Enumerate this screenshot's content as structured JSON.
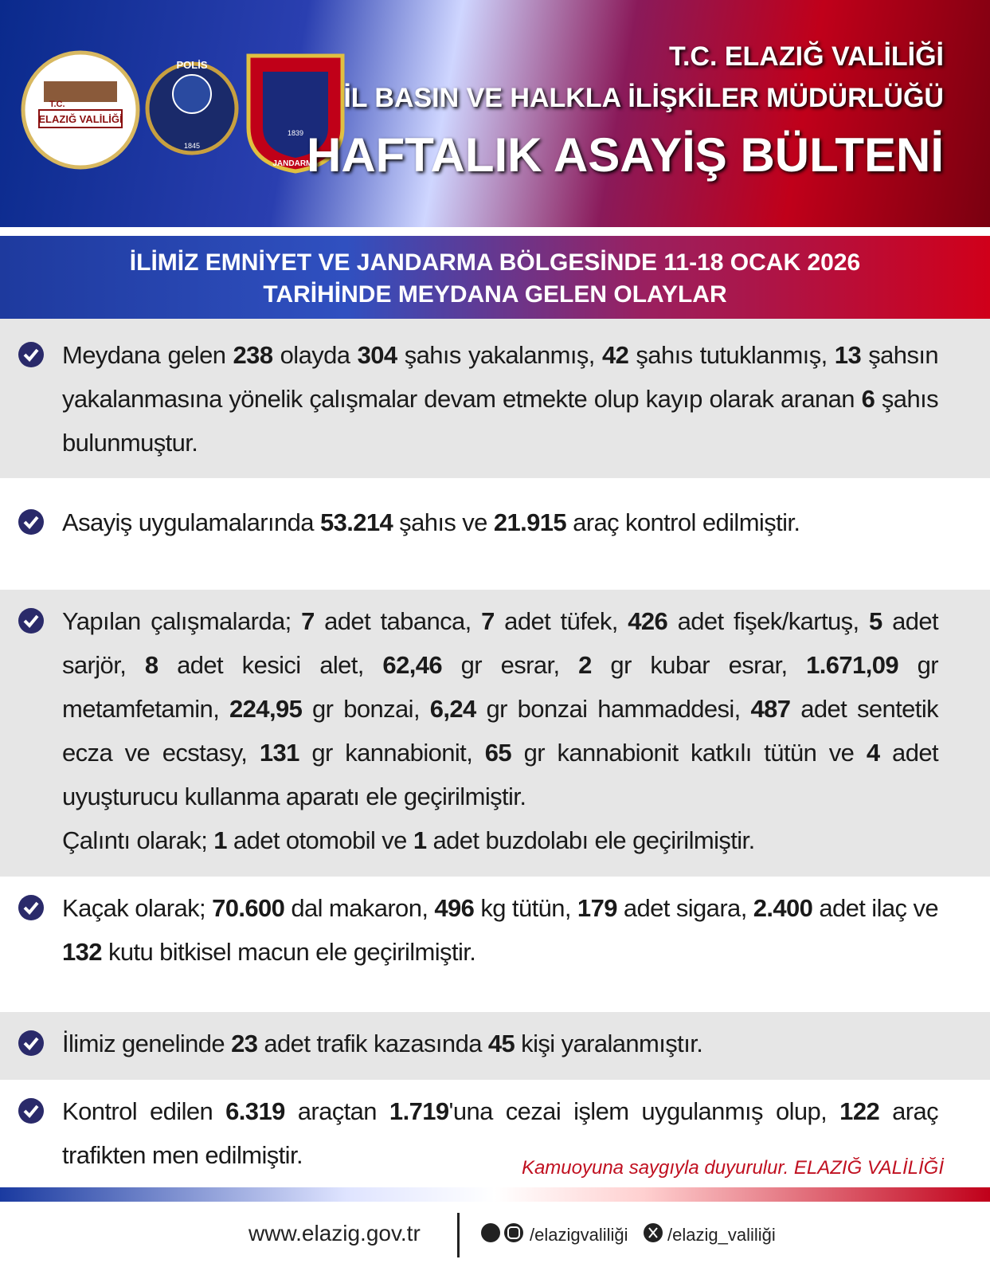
{
  "header": {
    "org_line": "T.C. ELAZIĞ VALİLİĞİ",
    "dept_line": "İL BASIN VE HALKLA İLİŞKİLER MÜDÜRLÜĞÜ",
    "title": "HAFTALIK ASAYİŞ BÜLTENİ",
    "logos": {
      "valilik_top": "T.C.",
      "valilik_name": "ELAZIĞ VALİLİĞİ",
      "polis": "POLİS",
      "polis_year": "1845",
      "jandarma": "JANDARMA",
      "jandarma_year": "1839"
    }
  },
  "subtitle": [
    "İLİMİZ EMNİYET VE JANDARMA BÖLGESİNDE 11-18 OCAK 2026",
    "TARİHİNDE MEYDANA GELEN OLAYLAR"
  ],
  "items": [
    [
      [
        {
          "text": "Meydana gelen "
        },
        {
          "bold": "238"
        },
        {
          "text": " olayda "
        },
        {
          "bold": "304"
        },
        {
          "text": " şahıs yakalanmış, "
        },
        {
          "bold": "42"
        },
        {
          "text": " şahıs tutuklanmış, "
        },
        {
          "bold": "13"
        },
        {
          "text": " şahsın yakalanmasına yönelik çalışmalar devam etmekte olup kayıp olarak aranan "
        },
        {
          "bold": "6"
        },
        {
          "text": " şahıs bulunmuştur."
        }
      ]
    ],
    [
      [
        {
          "text": "Asayiş uygulamalarında "
        },
        {
          "bold": "53.214"
        },
        {
          "text": " şahıs ve "
        },
        {
          "bold": "21.915"
        },
        {
          "text": " araç kontrol edilmiştir."
        }
      ]
    ],
    [
      [
        {
          "text": "Yapılan çalışmalarda; "
        },
        {
          "bold": "7"
        },
        {
          "text": " adet tabanca, "
        },
        {
          "bold": "7"
        },
        {
          "text": " adet tüfek, "
        },
        {
          "bold": "426"
        },
        {
          "text": " adet fişek/kartuş, "
        },
        {
          "bold": "5"
        },
        {
          "text": " adet sarjör, "
        },
        {
          "bold": "8"
        },
        {
          "text": " adet kesici alet, "
        },
        {
          "bold": "62,46"
        },
        {
          "text": " gr esrar, "
        },
        {
          "bold": "2"
        },
        {
          "text": " gr kubar esrar, "
        },
        {
          "bold": "1.671,09"
        },
        {
          "text": " gr metamfetamin, "
        },
        {
          "bold": "224,95"
        },
        {
          "text": " gr bonzai, "
        },
        {
          "bold": "6,24"
        },
        {
          "text": " gr bonzai hammaddesi, "
        },
        {
          "bold": "487"
        },
        {
          "text": " adet sentetik ecza ve ecstasy, "
        },
        {
          "bold": "131"
        },
        {
          "text": " gr kannabionit, "
        },
        {
          "bold": "65"
        },
        {
          "text": " gr kannabionit katkılı tütün ve "
        },
        {
          "bold": "4"
        },
        {
          "text": " adet uyuşturucu kullanma aparatı ele geçirilmiştir."
        }
      ],
      [
        {
          "text": "Çalıntı olarak; "
        },
        {
          "bold": "1"
        },
        {
          "text": " adet otomobil ve "
        },
        {
          "bold": "1"
        },
        {
          "text": " adet buzdolabı ele geçirilmiştir."
        }
      ]
    ],
    [
      [
        {
          "text": "Kaçak olarak; "
        },
        {
          "bold": "70.600"
        },
        {
          "text": " dal makaron, "
        },
        {
          "bold": "496"
        },
        {
          "text": " kg tütün, "
        },
        {
          "bold": "179"
        },
        {
          "text": " adet sigara, "
        },
        {
          "bold": "2.400"
        },
        {
          "text": " adet ilaç ve "
        },
        {
          "bold": "132"
        },
        {
          "text": " kutu bitkisel macun ele geçirilmiştir."
        }
      ]
    ],
    [
      [
        {
          "text": "İlimiz genelinde "
        },
        {
          "bold": "23"
        },
        {
          "text": " adet trafik kazasında "
        },
        {
          "bold": "45"
        },
        {
          "text": " kişi yaralanmıştır."
        }
      ]
    ],
    [
      [
        {
          "text": "Kontrol edilen "
        },
        {
          "bold": "6.319"
        },
        {
          "text": " araçtan "
        },
        {
          "bold": "1.719"
        },
        {
          "text": "'una cezai işlem uygulanmış olup, "
        },
        {
          "bold": "122"
        },
        {
          "text": " araç trafikten men edilmiştir."
        }
      ]
    ]
  ],
  "signature": "Kamuoyuna saygıyla duyurulur. ELAZIĞ VALİLİĞİ",
  "footer": {
    "website": "www.elazig.gov.tr",
    "social1": "/elazigvaliliği",
    "social2": "/elazig_valiliği"
  }
}
